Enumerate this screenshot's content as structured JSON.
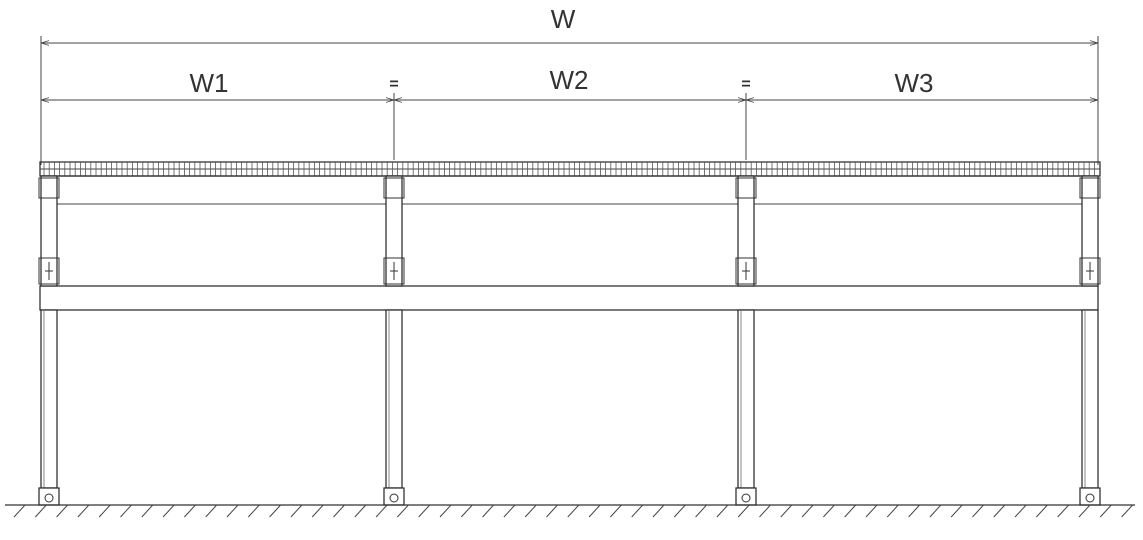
{
  "dimensions": {
    "overall": "W",
    "span1": "W1",
    "span2": "W2",
    "span3": "W3",
    "equal_mark": "="
  },
  "colors": {
    "line": "#333333",
    "background": "#ffffff"
  }
}
